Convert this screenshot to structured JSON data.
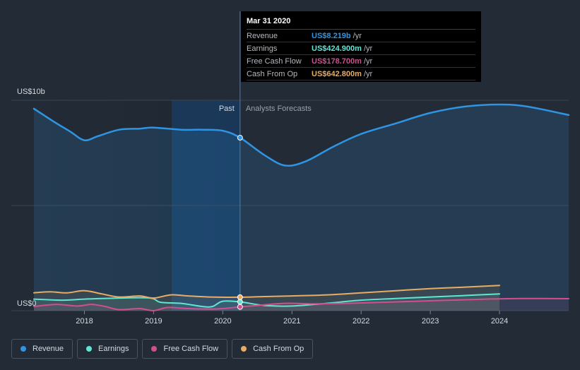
{
  "chart_data": {
    "type": "line",
    "x_unit": "year",
    "xlim": [
      2017.27,
      2025.0
    ],
    "ylim": [
      0,
      10
    ],
    "y_unit": "US$ billions",
    "y_axis_top_label": "US$10b",
    "y_axis_bottom_label": "US$0",
    "x_ticks": [
      2018,
      2019,
      2020,
      2021,
      2022,
      2023,
      2024
    ],
    "x_tick_labels": [
      "2018",
      "2019",
      "2020",
      "2021",
      "2022",
      "2023",
      "2024"
    ],
    "divider_x": 2020.25,
    "past_label": "Past",
    "forecast_label": "Analysts Forecasts",
    "series": [
      {
        "name": "Revenue",
        "color": "#2f95e3",
        "points": [
          [
            2017.27,
            9.6
          ],
          [
            2017.55,
            9.0
          ],
          [
            2017.8,
            8.5
          ],
          [
            2018.0,
            8.1
          ],
          [
            2018.2,
            8.3
          ],
          [
            2018.5,
            8.6
          ],
          [
            2018.8,
            8.65
          ],
          [
            2019.0,
            8.7
          ],
          [
            2019.4,
            8.6
          ],
          [
            2019.7,
            8.6
          ],
          [
            2020.0,
            8.55
          ],
          [
            2020.25,
            8.22
          ],
          [
            2020.6,
            7.4
          ],
          [
            2020.9,
            6.9
          ],
          [
            2021.2,
            7.1
          ],
          [
            2021.6,
            7.8
          ],
          [
            2022.0,
            8.4
          ],
          [
            2022.5,
            8.9
          ],
          [
            2023.0,
            9.4
          ],
          [
            2023.5,
            9.7
          ],
          [
            2024.0,
            9.8
          ],
          [
            2024.4,
            9.7
          ],
          [
            2025.0,
            9.3
          ]
        ]
      },
      {
        "name": "Earnings",
        "color": "#5ee6d4",
        "points": [
          [
            2017.27,
            0.55
          ],
          [
            2017.7,
            0.5
          ],
          [
            2018.0,
            0.55
          ],
          [
            2018.5,
            0.6
          ],
          [
            2018.95,
            0.6
          ],
          [
            2019.1,
            0.4
          ],
          [
            2019.4,
            0.35
          ],
          [
            2019.7,
            0.2
          ],
          [
            2019.85,
            0.2
          ],
          [
            2020.0,
            0.45
          ],
          [
            2020.25,
            0.42
          ],
          [
            2020.6,
            0.25
          ],
          [
            2021.0,
            0.22
          ],
          [
            2021.5,
            0.35
          ],
          [
            2022.0,
            0.5
          ],
          [
            2022.5,
            0.58
          ],
          [
            2023.0,
            0.65
          ],
          [
            2023.5,
            0.72
          ],
          [
            2024.0,
            0.8
          ]
        ]
      },
      {
        "name": "Free Cash Flow",
        "color": "#d14f8e",
        "points": [
          [
            2017.27,
            0.2
          ],
          [
            2017.6,
            0.3
          ],
          [
            2017.9,
            0.22
          ],
          [
            2018.1,
            0.3
          ],
          [
            2018.3,
            0.2
          ],
          [
            2018.5,
            0.05
          ],
          [
            2018.8,
            0.1
          ],
          [
            2019.0,
            0.0
          ],
          [
            2019.2,
            0.15
          ],
          [
            2019.5,
            0.1
          ],
          [
            2019.8,
            0.08
          ],
          [
            2020.0,
            0.1
          ],
          [
            2020.25,
            0.18
          ],
          [
            2020.5,
            0.25
          ],
          [
            2020.9,
            0.35
          ],
          [
            2021.3,
            0.33
          ],
          [
            2021.8,
            0.35
          ],
          [
            2022.3,
            0.4
          ],
          [
            2022.8,
            0.45
          ],
          [
            2023.3,
            0.5
          ],
          [
            2023.8,
            0.55
          ],
          [
            2024.3,
            0.58
          ],
          [
            2025.0,
            0.57
          ]
        ]
      },
      {
        "name": "Cash From Op",
        "color": "#e9ac63",
        "points": [
          [
            2017.27,
            0.85
          ],
          [
            2017.5,
            0.9
          ],
          [
            2017.75,
            0.85
          ],
          [
            2018.0,
            0.95
          ],
          [
            2018.25,
            0.8
          ],
          [
            2018.5,
            0.65
          ],
          [
            2018.8,
            0.7
          ],
          [
            2019.0,
            0.6
          ],
          [
            2019.25,
            0.75
          ],
          [
            2019.5,
            0.7
          ],
          [
            2019.8,
            0.65
          ],
          [
            2020.25,
            0.64
          ],
          [
            2020.6,
            0.67
          ],
          [
            2021.0,
            0.7
          ],
          [
            2021.5,
            0.75
          ],
          [
            2022.0,
            0.85
          ],
          [
            2022.5,
            0.95
          ],
          [
            2023.0,
            1.05
          ],
          [
            2023.5,
            1.12
          ],
          [
            2024.0,
            1.2
          ]
        ]
      }
    ],
    "tooltip": {
      "date": "Mar 31 2020",
      "rows": [
        {
          "label": "Revenue",
          "value": "US$8.219b",
          "unit": "/yr",
          "color": "#2f95e3"
        },
        {
          "label": "Earnings",
          "value": "US$424.900m",
          "unit": "/yr",
          "color": "#5ee6d4"
        },
        {
          "label": "Free Cash Flow",
          "value": "US$178.700m",
          "unit": "/yr",
          "color": "#d14f8e"
        },
        {
          "label": "Cash From Op",
          "value": "US$642.800m",
          "unit": "/yr",
          "color": "#e9ac63"
        }
      ]
    }
  },
  "legend": [
    {
      "label": "Revenue",
      "color": "#2f95e3"
    },
    {
      "label": "Earnings",
      "color": "#5ee6d4"
    },
    {
      "label": "Free Cash Flow",
      "color": "#d14f8e"
    },
    {
      "label": "Cash From Op",
      "color": "#e9ac63"
    }
  ]
}
